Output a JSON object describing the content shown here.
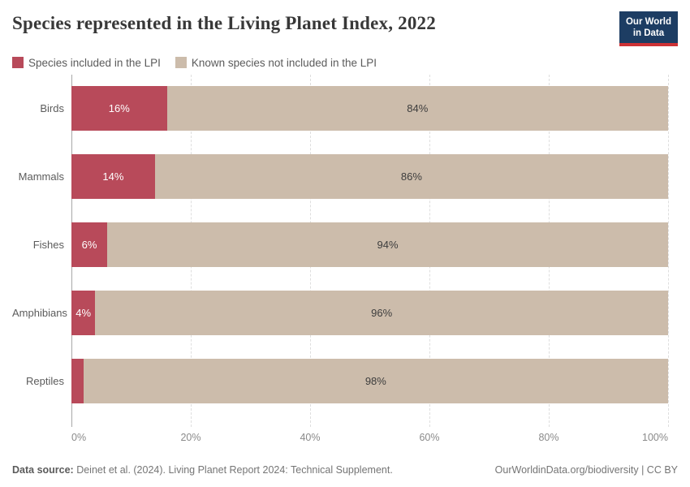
{
  "header": {
    "title": "Species represented in the Living Planet Index, 2022",
    "logo_line1": "Our World",
    "logo_line2": "in Data",
    "logo_bg_color": "#1d3d63",
    "logo_accent_color": "#cd3235"
  },
  "legend": {
    "items": [
      {
        "label": "Species included in the LPI",
        "color": "#b84a5a"
      },
      {
        "label": "Known species not included in the LPI",
        "color": "#ccbcab"
      }
    ]
  },
  "chart_data": {
    "type": "bar",
    "orientation": "horizontal",
    "stacked": true,
    "title": "Species represented in the Living Planet Index, 2022",
    "categories": [
      "Birds",
      "Mammals",
      "Fishes",
      "Amphibians",
      "Reptiles"
    ],
    "series": [
      {
        "name": "Species included in the LPI",
        "color": "#b84a5a",
        "values": [
          16,
          14,
          6,
          4,
          2
        ]
      },
      {
        "name": "Known species not included in the LPI",
        "color": "#ccbcab",
        "values": [
          84,
          86,
          94,
          96,
          98
        ]
      }
    ],
    "value_label_suffix": "%",
    "min_pct_to_show_label": 3,
    "xlim": [
      0,
      100
    ],
    "x_ticks": [
      {
        "pos": 0,
        "label": "0%"
      },
      {
        "pos": 20,
        "label": "20%"
      },
      {
        "pos": 40,
        "label": "40%"
      },
      {
        "pos": 60,
        "label": "60%"
      },
      {
        "pos": 80,
        "label": "80%"
      },
      {
        "pos": 100,
        "label": "100%"
      }
    ],
    "grid": "dashed-vertical",
    "legend_position": "top-left"
  },
  "footer": {
    "datasource_label": "Data source:",
    "datasource_text": " Deinet et al. (2024). Living Planet Report 2024: Technical Supplement.",
    "link_text": "OurWorldinData.org/biodiversity | CC BY"
  }
}
